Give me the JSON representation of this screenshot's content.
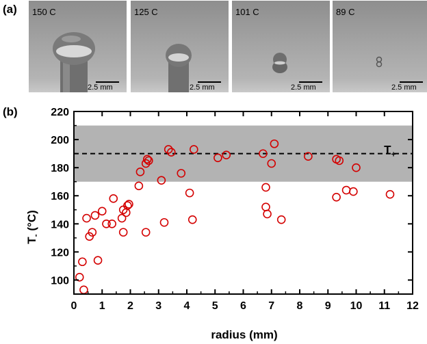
{
  "panel_a_label": "(a)",
  "panel_b_label": "(b)",
  "photos": [
    {
      "temp": "150 C",
      "scale": "2.5 mm"
    },
    {
      "temp": "125 C",
      "scale": "2.5 mm"
    },
    {
      "temp": "101 C",
      "scale": "2.5 mm"
    },
    {
      "temp": "89 C",
      "scale": "2.5 mm"
    }
  ],
  "chart_data": {
    "type": "scatter",
    "xlabel": "radius (mm)",
    "ylabel_main": "T",
    "ylabel_sub": "-",
    "ylabel_unit": " (°C)",
    "xlim": [
      0,
      12
    ],
    "ylim": [
      90,
      220
    ],
    "xticks": [
      0,
      1,
      2,
      3,
      4,
      5,
      6,
      7,
      8,
      9,
      10,
      11,
      12
    ],
    "yticks": [
      100,
      120,
      140,
      160,
      180,
      200,
      220
    ],
    "band": {
      "low": 170,
      "high": 210,
      "color": "#b3b3b3"
    },
    "reference_line": {
      "y": 190,
      "style": "dashed"
    },
    "annotation": {
      "main": "T",
      "sub": "+",
      "x": 10.5,
      "y": 196
    },
    "marker_color": "#d40000",
    "grid": false,
    "points": [
      {
        "x": 0.2,
        "y": 102
      },
      {
        "x": 0.3,
        "y": 113
      },
      {
        "x": 0.35,
        "y": 93
      },
      {
        "x": 0.45,
        "y": 144
      },
      {
        "x": 0.55,
        "y": 131
      },
      {
        "x": 0.65,
        "y": 134
      },
      {
        "x": 0.75,
        "y": 146
      },
      {
        "x": 0.85,
        "y": 114
      },
      {
        "x": 1.0,
        "y": 149
      },
      {
        "x": 1.15,
        "y": 140
      },
      {
        "x": 1.35,
        "y": 140
      },
      {
        "x": 1.4,
        "y": 158
      },
      {
        "x": 1.7,
        "y": 144
      },
      {
        "x": 1.75,
        "y": 134
      },
      {
        "x": 1.75,
        "y": 150
      },
      {
        "x": 1.85,
        "y": 148
      },
      {
        "x": 1.9,
        "y": 153
      },
      {
        "x": 1.95,
        "y": 154
      },
      {
        "x": 2.3,
        "y": 167
      },
      {
        "x": 2.35,
        "y": 177
      },
      {
        "x": 2.55,
        "y": 134
      },
      {
        "x": 2.55,
        "y": 183
      },
      {
        "x": 2.6,
        "y": 186
      },
      {
        "x": 2.65,
        "y": 185
      },
      {
        "x": 3.1,
        "y": 171
      },
      {
        "x": 3.2,
        "y": 141
      },
      {
        "x": 3.35,
        "y": 193
      },
      {
        "x": 3.45,
        "y": 191
      },
      {
        "x": 3.8,
        "y": 176
      },
      {
        "x": 4.1,
        "y": 162
      },
      {
        "x": 4.2,
        "y": 143
      },
      {
        "x": 4.25,
        "y": 193
      },
      {
        "x": 5.1,
        "y": 187
      },
      {
        "x": 5.4,
        "y": 189
      },
      {
        "x": 6.7,
        "y": 190
      },
      {
        "x": 6.8,
        "y": 152
      },
      {
        "x": 6.8,
        "y": 166
      },
      {
        "x": 6.85,
        "y": 147
      },
      {
        "x": 7.0,
        "y": 183
      },
      {
        "x": 7.1,
        "y": 197
      },
      {
        "x": 7.35,
        "y": 143
      },
      {
        "x": 8.3,
        "y": 188
      },
      {
        "x": 9.3,
        "y": 186
      },
      {
        "x": 9.3,
        "y": 159
      },
      {
        "x": 9.4,
        "y": 185
      },
      {
        "x": 9.65,
        "y": 164
      },
      {
        "x": 9.9,
        "y": 163
      },
      {
        "x": 10.0,
        "y": 180
      },
      {
        "x": 11.2,
        "y": 161
      }
    ]
  }
}
